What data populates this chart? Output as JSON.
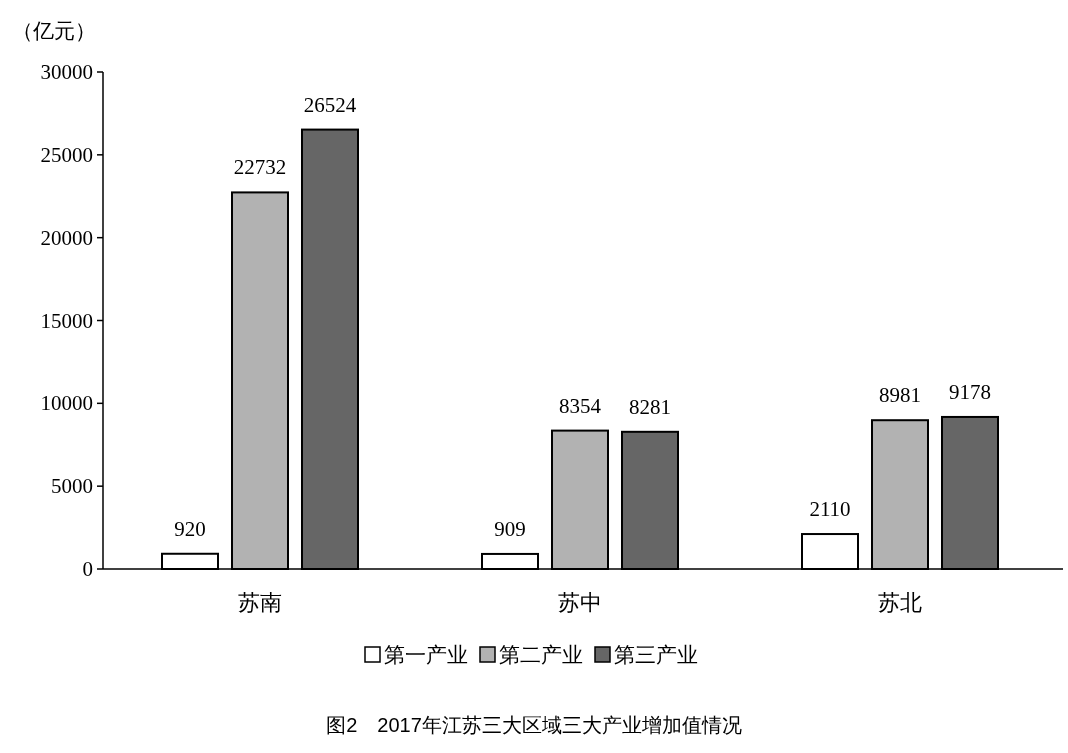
{
  "chart_data": {
    "type": "bar",
    "title": "图2　2017年江苏三大区域三大产业增加值情况",
    "ylabel": "（亿元）",
    "categories": [
      "苏南",
      "苏中",
      "苏北"
    ],
    "series": [
      {
        "name": "第一产业",
        "color": "#ffffff",
        "values": [
          920,
          909,
          2110
        ]
      },
      {
        "name": "第二产业",
        "color": "#b2b2b2",
        "values": [
          22732,
          8354,
          8981
        ]
      },
      {
        "name": "第三产业",
        "color": "#666666",
        "values": [
          26524,
          8281,
          9178
        ]
      }
    ],
    "ylim": [
      0,
      30000
    ],
    "yticks": [
      0,
      5000,
      10000,
      15000,
      20000,
      25000,
      30000
    ],
    "data_labels": true,
    "legend": "bottom"
  }
}
